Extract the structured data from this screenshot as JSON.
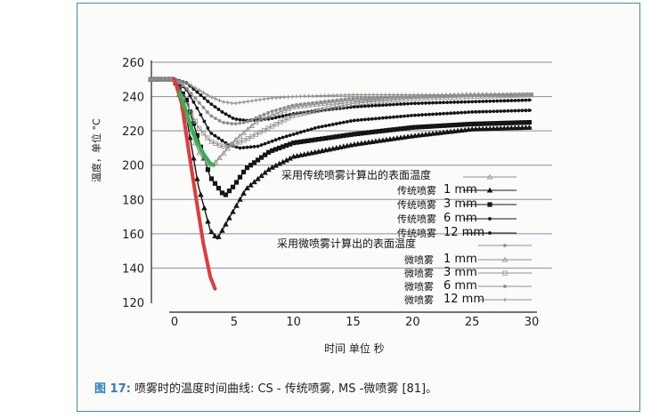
{
  "caption": {
    "figure_label": "图 17:",
    "text": " 喷雾时的温度时间曲线: CS - 传统喷雾, MS -微喷雾 [81]。"
  },
  "colors": {
    "frame": "#3a8fc6",
    "red_curve": "#e03a3a",
    "green_curve": "#34b34a",
    "cs_curves": "#151515",
    "ms_curves": "#8f8f8f"
  },
  "chart_data": {
    "type": "line",
    "xlabel": "时间 单位 秒",
    "ylabel": "温度，单位 °C",
    "xlim": [
      -2,
      30
    ],
    "ylim": [
      120,
      260
    ],
    "xticks": [
      0,
      5,
      10,
      15,
      20,
      25,
      30
    ],
    "yticks": [
      120,
      140,
      160,
      180,
      200,
      220,
      240,
      260
    ],
    "grid": "horizontal",
    "legend_groups": [
      {
        "title": "采用传统喷雾计算出的表面温度",
        "entries": [
          {
            "prefix": "传统喷雾",
            "size": "1 mm",
            "marker": "triangle"
          },
          {
            "prefix": "传统喷雾",
            "size": "3 mm",
            "marker": "square"
          },
          {
            "prefix": "传统喷雾",
            "size": "6 mm",
            "marker": "dot"
          },
          {
            "prefix": "传统喷雾",
            "size": "12 mm",
            "marker": "dot"
          }
        ]
      },
      {
        "title": "采用微喷雾计算出的表面温度",
        "entries": [
          {
            "prefix": "微喷雾",
            "size": "1 mm",
            "marker": "triangle-open"
          },
          {
            "prefix": "微喷雾",
            "size": "3 mm",
            "marker": "square-open"
          },
          {
            "prefix": "微喷雾",
            "size": "6 mm",
            "marker": "dot"
          },
          {
            "prefix": "微喷雾",
            "size": "12 mm",
            "marker": "cross"
          }
        ]
      }
    ],
    "series": [
      {
        "group": "cs",
        "marker": "triangle",
        "color": "#151515",
        "x": [
          -2,
          0,
          1,
          2,
          3,
          3.6,
          4.5,
          6,
          8,
          10,
          15,
          20,
          25,
          30
        ],
        "y": [
          250,
          250,
          228,
          188,
          162,
          157,
          168,
          186,
          198,
          205,
          212,
          217,
          221,
          222
        ]
      },
      {
        "group": "cs",
        "marker": "square",
        "color": "#151515",
        "x": [
          -2,
          0,
          1,
          2,
          3,
          4.2,
          5,
          6,
          8,
          10,
          15,
          20,
          25,
          30
        ],
        "y": [
          250,
          250,
          238,
          215,
          193,
          182,
          188,
          198,
          208,
          213,
          218,
          222,
          224,
          225
        ]
      },
      {
        "group": "cs",
        "marker": "dot",
        "color": "#151515",
        "x": [
          -2,
          0,
          1,
          2,
          3,
          4.5,
          5.5,
          7,
          9,
          12,
          15,
          20,
          25,
          30
        ],
        "y": [
          250,
          250,
          244,
          232,
          219,
          212,
          210,
          211,
          216,
          222,
          226,
          229,
          231,
          232
        ]
      },
      {
        "group": "cs",
        "marker": "dot",
        "color": "#151515",
        "x": [
          -2,
          0,
          1,
          2,
          3,
          4,
          5,
          6,
          8,
          10,
          15,
          20,
          25,
          30
        ],
        "y": [
          250,
          250,
          248,
          242,
          236,
          231,
          227,
          226,
          227,
          230,
          234,
          236,
          237,
          238
        ]
      },
      {
        "group": "ms",
        "marker": "triangle-open",
        "color": "#8f8f8f",
        "x": [
          -2,
          0,
          1,
          2,
          2.7,
          3,
          3.5,
          4,
          5,
          7,
          10,
          15,
          20,
          25,
          30
        ],
        "y": [
          250,
          250,
          227,
          208,
          201,
          200,
          202,
          206,
          214,
          226,
          234,
          238,
          240,
          241,
          241
        ]
      },
      {
        "group": "ms",
        "marker": "square-open",
        "color": "#8f8f8f",
        "x": [
          -2,
          0,
          1,
          2,
          3,
          4,
          5,
          6,
          8,
          10,
          15,
          20,
          25,
          30
        ],
        "y": [
          250,
          250,
          236,
          222,
          214,
          211,
          212,
          215,
          222,
          229,
          236,
          239,
          240,
          241
        ]
      },
      {
        "group": "ms",
        "marker": "dot",
        "color": "#8f8f8f",
        "x": [
          -2,
          0,
          1,
          2,
          3,
          4,
          5,
          6,
          7,
          8,
          10,
          15,
          20,
          25,
          30
        ],
        "y": [
          250,
          250,
          245,
          237,
          229,
          225,
          224,
          225,
          228,
          231,
          235,
          239,
          240,
          241,
          241
        ]
      },
      {
        "group": "ms",
        "marker": "cross",
        "color": "#8f8f8f",
        "x": [
          -2,
          0,
          1,
          2,
          3,
          4,
          5,
          6,
          8,
          10,
          15,
          20,
          25,
          30
        ],
        "y": [
          250,
          250,
          248,
          244,
          240,
          237,
          236,
          237,
          239,
          240,
          241,
          241,
          241,
          241
        ]
      },
      {
        "group": "overlay",
        "marker": "none",
        "color": "#e03a3a",
        "x": [
          0,
          0.6,
          1.2,
          1.8,
          2.4,
          3.0,
          3.4
        ],
        "y": [
          250,
          236,
          208,
          181,
          155,
          135,
          128
        ]
      },
      {
        "group": "overlay",
        "marker": "none",
        "color": "#34b34a",
        "x": [
          0.4,
          1,
          1.5,
          2,
          2.5,
          3,
          3.3
        ],
        "y": [
          242,
          231,
          220,
          212,
          206,
          201,
          200
        ]
      }
    ]
  }
}
